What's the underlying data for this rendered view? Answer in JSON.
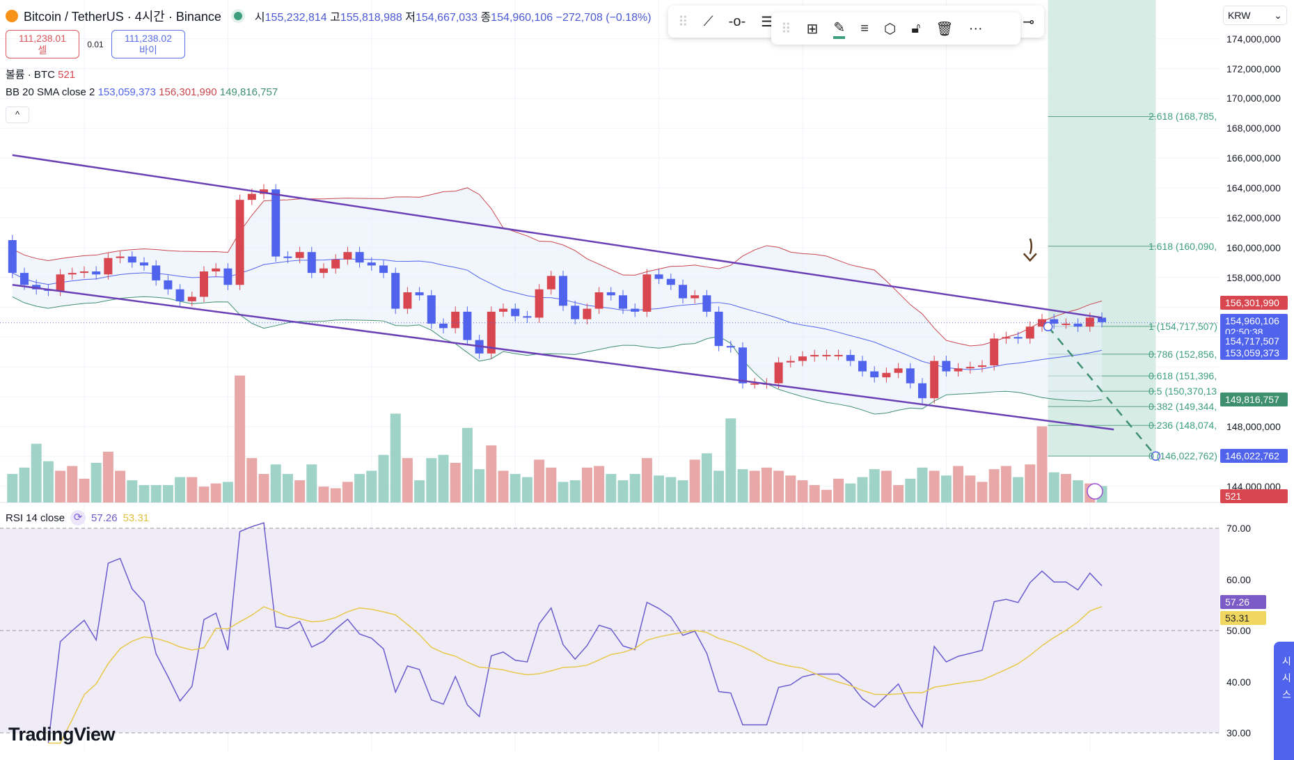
{
  "header": {
    "symbol": "Bitcoin / TetherUS · 4시간 · Binance",
    "o_label": "시",
    "o": "155,232,814",
    "h_label": "고",
    "h": "155,818,988",
    "l_label": "저",
    "l": "154,667,033",
    "c_label": "종",
    "c": "154,960,106",
    "change": "−272,708 (−0.18%)"
  },
  "trade": {
    "sell_price": "111,238.01",
    "sell_label": "셀",
    "spread": "0.01",
    "buy_price": "111,238.02",
    "buy_label": "바이"
  },
  "volume_legend": {
    "title": "볼륨 · BTC",
    "value": "521"
  },
  "bb_legend": {
    "title": "BB 20 SMA close 2",
    "basis": "153,059,373",
    "upper": "156,301,990",
    "lower": "149,816,757"
  },
  "collapse_label": "^",
  "toolbar": [
    "trend-line",
    "horizontal-ray",
    "fib-tools",
    "add-template",
    "pencil-color",
    "line-style",
    "settings",
    "unlock",
    "delete",
    "more",
    "fib-icon"
  ],
  "currency": "KRW",
  "price_axis": [
    "174,000,000",
    "172,000,000",
    "170,000,000",
    "168,000,000",
    "166,000,000",
    "164,000,000",
    "162,000,000",
    "160,000,000",
    "158,000,000",
    "148,000,000",
    "144,000,000"
  ],
  "price_labels": [
    {
      "text": "156,301,990",
      "color": "#d8464f"
    },
    {
      "text": "154,960,106\n02:50:38",
      "color": "#4f63ec"
    },
    {
      "text": "154,717,507",
      "color": "#4f63ec"
    },
    {
      "text": "153,059,373",
      "color": "#4f63ec"
    },
    {
      "text": "149,816,757",
      "color": "#3d8f6f"
    },
    {
      "text": "146,022,762",
      "color": "#4f63ec"
    },
    {
      "text": "521",
      "color": "#d8464f"
    }
  ],
  "fib_labels": [
    "2.618 (168,785,",
    "1.618 (160,090,",
    "1 (154,717,507)",
    "0.786 (152,856,",
    "0.618 (151,396,",
    "0.5 (150,370,13",
    "0.382 (149,344,",
    "0.236 (148,074,",
    "0 (146,022,762)"
  ],
  "rsi_legend": {
    "title": "RSI 14 close",
    "rsi": "57.26",
    "ma": "53.31"
  },
  "rsi_axis": [
    "70.00",
    "60.00",
    "50.00",
    "40.00",
    "30.00"
  ],
  "brand": "TradingView",
  "popup_text": "시\n시\n스",
  "chart_data": {
    "type": "candlestick",
    "price_unit": "million KRW",
    "first_open": 160.5,
    "closes": [
      158.3,
      157.5,
      157.2,
      157.1,
      158.2,
      158.3,
      158.4,
      158.2,
      159.3,
      159.4,
      159.0,
      158.8,
      157.8,
      157.2,
      156.4,
      156.7,
      158.4,
      158.6,
      157.5,
      163.2,
      163.6,
      163.9,
      159.4,
      159.3,
      159.7,
      158.3,
      158.6,
      159.2,
      159.7,
      159.0,
      158.8,
      158.3,
      155.9,
      157.0,
      156.8,
      154.9,
      154.6,
      155.7,
      153.8,
      152.9,
      155.7,
      155.9,
      155.4,
      155.3,
      157.2,
      158.1,
      156.1,
      155.2,
      155.9,
      157.0,
      156.8,
      155.9,
      155.7,
      158.2,
      157.9,
      157.5,
      156.6,
      156.8,
      155.7,
      153.4,
      153.3,
      150.9,
      150.9,
      150.9,
      152.3,
      152.4,
      152.7,
      152.8,
      152.8,
      152.8,
      152.4,
      151.7,
      151.3,
      151.6,
      151.9,
      150.9,
      149.9,
      152.4,
      151.7,
      151.9,
      152.0,
      152.1,
      153.9,
      154.0,
      153.9,
      154.7,
      155.2,
      154.9,
      154.9,
      154.7,
      155.3,
      155.0
    ],
    "volumes": [
      900,
      1100,
      1850,
      1300,
      1000,
      1150,
      750,
      1250,
      1600,
      1000,
      700,
      550,
      550,
      550,
      800,
      800,
      500,
      600,
      650,
      4000,
      1400,
      900,
      1200,
      900,
      700,
      1200,
      500,
      450,
      650,
      900,
      1000,
      1500,
      2800,
      1400,
      700,
      1400,
      1500,
      1250,
      2350,
      1050,
      1800,
      1000,
      900,
      800,
      1350,
      1100,
      650,
      700,
      1100,
      1150,
      900,
      700,
      900,
      1400,
      850,
      800,
      700,
      1350,
      1550,
      1000,
      2650,
      1050,
      1000,
      1100,
      1000,
      850,
      700,
      550,
      400,
      750,
      600,
      800,
      1050,
      1000,
      550,
      750,
      1100,
      1000,
      850,
      1150,
      850,
      650,
      1050,
      1150,
      800,
      1200,
      2400,
      950,
      900,
      700,
      600,
      521
    ],
    "yrange": [
      143,
      175
    ],
    "channel_upper": [
      [
        0,
        166.2
      ],
      [
        91,
        155.3
      ]
    ],
    "channel_lower": [
      [
        0,
        157.5
      ],
      [
        92,
        147.8
      ]
    ],
    "fib_levels": [
      [
        2.618,
        168.785
      ],
      [
        1.618,
        160.09
      ],
      [
        1,
        154.7175
      ],
      [
        0.786,
        152.856
      ],
      [
        0.618,
        151.396
      ],
      [
        0.5,
        150.37
      ],
      [
        0.382,
        149.344
      ],
      [
        0.236,
        148.074
      ],
      [
        0,
        146.0228
      ]
    ],
    "fib_range_bars": [
      86.5,
      95.5
    ],
    "projection": [
      [
        86.5,
        154.7
      ],
      [
        95.5,
        146.02
      ]
    ],
    "rsi_period": 14,
    "rsi_ylim": [
      30,
      70
    ],
    "colors": {
      "up": "#d8464f",
      "down": "#4f63ec",
      "bb_upper": "#c9454d",
      "bb_basis": "#4f63ec",
      "bb_lower": "#3d8f6f",
      "channel": "#6a3fb5",
      "rsi": "#6a5acd",
      "rsi_ma": "#e8c84a"
    }
  }
}
